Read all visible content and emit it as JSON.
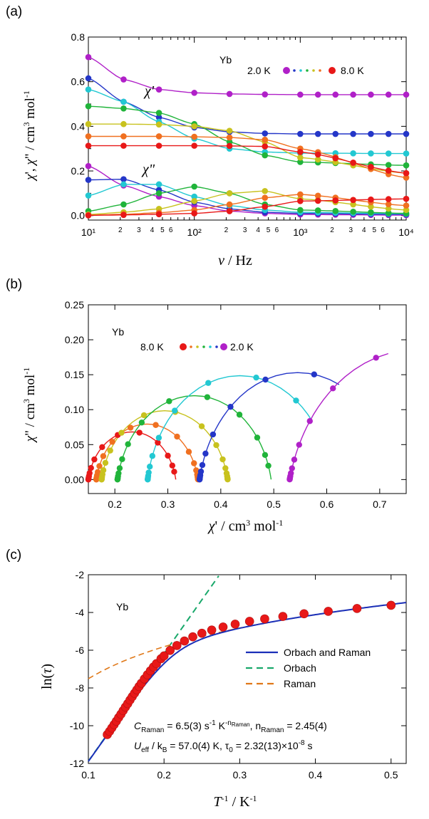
{
  "chart_data": [
    {
      "id": "a",
      "panel_label": "(a)",
      "type": "line",
      "x_scale": "log",
      "xlim": [
        10,
        10000
      ],
      "ylim": [
        -0.02,
        0.8
      ],
      "xlabel": "ν / Hz",
      "ylabel": "χ', χ\" / cm³ mol⁻¹",
      "x_ticks_major": [
        10,
        100,
        1000,
        10000
      ],
      "x_tick_labels": [
        "10¹",
        "10²",
        "10³",
        "10⁴"
      ],
      "x_minor_labels": [
        "2",
        "3",
        "4",
        "5",
        "6"
      ],
      "y_ticks": [
        0.0,
        0.2,
        0.4,
        0.6,
        0.8
      ],
      "y_tick_labels": [
        "0.0",
        "0.2",
        "0.4",
        "0.6",
        "0.8"
      ],
      "annotations": {
        "material": "Yb",
        "chi_prime": "χ'",
        "chi_double_prime": "χ\""
      },
      "legend": {
        "left": "2.0 K",
        "right": "8.0 K",
        "placement": "top-right"
      },
      "colors": [
        "#b020c8",
        "#2436c8",
        "#22c8d2",
        "#20b43a",
        "#c8c21e",
        "#f07020",
        "#e81818"
      ],
      "chi_prime_series": [
        {
          "T": "2.0 K",
          "color": "#b020c8",
          "x": [
            10,
            21.5,
            46.4,
            100,
            215,
            464,
            1000,
            10000
          ],
          "y": [
            0.71,
            0.61,
            0.565,
            0.55,
            0.545,
            0.543,
            0.542,
            0.542
          ]
        },
        {
          "T": "color-2",
          "color": "#2436c8",
          "x": [
            10,
            21.5,
            46.4,
            100,
            215,
            464,
            1000,
            10000
          ],
          "y": [
            0.615,
            0.51,
            0.44,
            0.395,
            0.375,
            0.368,
            0.366,
            0.366
          ]
        },
        {
          "T": "color-3",
          "color": "#22c8d2",
          "x": [
            10,
            21.5,
            46.4,
            100,
            215,
            464,
            1000,
            10000
          ],
          "y": [
            0.565,
            0.51,
            0.42,
            0.345,
            0.3,
            0.285,
            0.28,
            0.278
          ]
        },
        {
          "T": "color-4",
          "color": "#20b43a",
          "x": [
            10,
            21.5,
            46.4,
            100,
            215,
            464,
            1000,
            10000
          ],
          "y": [
            0.49,
            0.48,
            0.46,
            0.41,
            0.33,
            0.27,
            0.24,
            0.225
          ]
        },
        {
          "T": "color-5",
          "color": "#c8c21e",
          "x": [
            10,
            21.5,
            46.4,
            100,
            215,
            464,
            1000,
            10000
          ],
          "y": [
            0.41,
            0.41,
            0.408,
            0.4,
            0.38,
            0.33,
            0.26,
            0.19
          ]
        },
        {
          "T": "color-6",
          "color": "#f07020",
          "x": [
            10,
            21.5,
            46.4,
            100,
            215,
            464,
            1000,
            10000
          ],
          "y": [
            0.355,
            0.355,
            0.355,
            0.353,
            0.35,
            0.34,
            0.3,
            0.17
          ]
        },
        {
          "T": "8.0 K",
          "color": "#e81818",
          "x": [
            10,
            21.5,
            46.4,
            100,
            215,
            464,
            1000,
            10000
          ],
          "y": [
            0.313,
            0.313,
            0.313,
            0.313,
            0.312,
            0.31,
            0.285,
            0.19
          ]
        }
      ],
      "chi_double_prime_series": [
        {
          "T": "2.0 K",
          "color": "#b020c8",
          "x": [
            10,
            21.5,
            46.4,
            100,
            215,
            464,
            1000,
            10000
          ],
          "y": [
            0.222,
            0.135,
            0.085,
            0.045,
            0.02,
            0.01,
            0.005,
            0.002
          ]
        },
        {
          "T": "color-2",
          "color": "#2436c8",
          "x": [
            10,
            21.5,
            46.4,
            100,
            215,
            464,
            1000,
            10000
          ],
          "y": [
            0.16,
            0.163,
            0.115,
            0.06,
            0.03,
            0.015,
            0.01,
            0.005
          ]
        },
        {
          "T": "color-3",
          "color": "#22c8d2",
          "x": [
            10,
            21.5,
            46.4,
            100,
            215,
            464,
            1000,
            10000
          ],
          "y": [
            0.09,
            0.14,
            0.14,
            0.085,
            0.045,
            0.025,
            0.015,
            0.008
          ]
        },
        {
          "T": "color-4",
          "color": "#20b43a",
          "x": [
            10,
            21.5,
            46.4,
            100,
            215,
            464,
            1000,
            10000
          ],
          "y": [
            0.02,
            0.05,
            0.1,
            0.13,
            0.1,
            0.05,
            0.025,
            0.01
          ]
        },
        {
          "T": "color-5",
          "color": "#c8c21e",
          "x": [
            10,
            21.5,
            46.4,
            100,
            215,
            464,
            1000,
            10000
          ],
          "y": [
            0.005,
            0.015,
            0.03,
            0.065,
            0.1,
            0.11,
            0.075,
            0.025
          ]
        },
        {
          "T": "color-6",
          "color": "#f07020",
          "x": [
            10,
            21.5,
            46.4,
            100,
            215,
            464,
            1000,
            10000
          ],
          "y": [
            0.002,
            0.006,
            0.013,
            0.025,
            0.05,
            0.08,
            0.095,
            0.045
          ]
        },
        {
          "T": "8.0 K",
          "color": "#e81818",
          "x": [
            10,
            21.5,
            46.4,
            100,
            215,
            464,
            1000,
            10000
          ],
          "y": [
            0.001,
            0.003,
            0.006,
            0.01,
            0.02,
            0.04,
            0.065,
            0.075
          ]
        }
      ]
    },
    {
      "id": "b",
      "panel_label": "(b)",
      "type": "scatter",
      "xlim": [
        0.15,
        0.75
      ],
      "ylim": [
        -0.02,
        0.25
      ],
      "xlabel": "χ' / cm³ mol⁻¹",
      "ylabel": "χ\" / cm³ mol⁻¹",
      "x_ticks": [
        0.2,
        0.3,
        0.4,
        0.5,
        0.6,
        0.7
      ],
      "x_tick_labels": [
        "0.2",
        "0.3",
        "0.4",
        "0.5",
        "0.6",
        "0.7"
      ],
      "y_ticks": [
        0.0,
        0.05,
        0.1,
        0.15,
        0.2,
        0.25
      ],
      "y_tick_labels": [
        "0.00",
        "0.05",
        "0.10",
        "0.15",
        "0.20",
        "0.25"
      ],
      "annotations": {
        "material": "Yb"
      },
      "legend": {
        "left": "8.0 K",
        "right": "2.0 K",
        "placement": "top-left"
      },
      "colors": [
        "#e81818",
        "#f07020",
        "#c8c21e",
        "#20b43a",
        "#22c8d2",
        "#2436c8",
        "#b020c8"
      ],
      "cole_cole": [
        {
          "T": "8.0 K",
          "color": "#e81818",
          "chi_s": 0.15,
          "chi_t": 0.315,
          "alpha": 0.12
        },
        {
          "T": "color-2",
          "color": "#f07020",
          "chi_s": 0.165,
          "chi_t": 0.357,
          "alpha": 0.12
        },
        {
          "T": "color-3",
          "color": "#c8c21e",
          "chi_s": 0.175,
          "chi_t": 0.413,
          "alpha": 0.12
        },
        {
          "T": "color-4",
          "color": "#20b43a",
          "chi_s": 0.205,
          "chi_t": 0.495,
          "alpha": 0.12
        },
        {
          "T": "color-5",
          "color": "#22c8d2",
          "chi_s": 0.262,
          "chi_t": 0.61,
          "alpha": 0.1
        },
        {
          "T": "color-6",
          "color": "#2436c8",
          "chi_s": 0.36,
          "chi_t": 0.73,
          "alpha": 0.12
        },
        {
          "T": "2.0 K",
          "color": "#b020c8",
          "chi_s": 0.53,
          "chi_t": 1.0,
          "alpha": 0.15
        }
      ]
    },
    {
      "id": "c",
      "panel_label": "(c)",
      "type": "scatter",
      "xlim": [
        0.1,
        0.52
      ],
      "ylim": [
        -12,
        -2
      ],
      "xlabel": "T⁻¹ / K⁻¹",
      "ylabel": "ln(τ)",
      "x_ticks": [
        0.1,
        0.2,
        0.3,
        0.4,
        0.5
      ],
      "x_tick_labels": [
        "0.1",
        "0.2",
        "0.3",
        "0.4",
        "0.5"
      ],
      "y_ticks": [
        -12,
        -10,
        -8,
        -6,
        -4,
        -2
      ],
      "y_tick_labels": [
        "-12",
        "-10",
        "-8",
        "-6",
        "-4",
        "-2"
      ],
      "annotations": {
        "material": "Yb",
        "eq1_prefix": "C",
        "eq1_sub": "Raman",
        "eq1_value": " = 6.5(3) s",
        "eq1_s_exp": "-1",
        "eq1_K": " K",
        "eq1_K_exp": "-n",
        "eq1_K_exp_sub": "Raman",
        "eq1_mid": ", n",
        "eq1_n_sub": "Raman",
        "eq1_n_value": " = 2.45(4)",
        "eq2_U": "U",
        "eq2_U_sub": "eff",
        "eq2_k": " / k",
        "eq2_k_sub": "B",
        "eq2_value": " = 57.0(4) K, τ",
        "eq2_tau_sub": "0",
        "eq2_tau_value": " = 2.32(13)×10",
        "eq2_exp": "-8",
        "eq2_unit": " s"
      },
      "legend": {
        "placement": "right",
        "entries": [
          {
            "label": "Orbach and Raman",
            "color": "#1a2fb8",
            "style": "solid"
          },
          {
            "label": "Orbach",
            "color": "#18a86a",
            "style": "dashed"
          },
          {
            "label": "Raman",
            "color": "#e07818",
            "style": "dashed"
          }
        ]
      },
      "fit": {
        "U_eff_over_kB": 57.0,
        "tau0": 2.32e-08,
        "C_Raman": 6.5,
        "n_Raman": 2.45
      },
      "points_x": [
        0.125,
        0.128,
        0.131,
        0.134,
        0.137,
        0.14,
        0.143,
        0.146,
        0.149,
        0.152,
        0.155,
        0.158,
        0.161,
        0.164,
        0.167,
        0.17,
        0.174,
        0.178,
        0.182,
        0.186,
        0.19,
        0.196,
        0.2,
        0.208,
        0.217,
        0.227,
        0.238,
        0.25,
        0.263,
        0.278,
        0.294,
        0.313,
        0.333,
        0.357,
        0.385,
        0.417,
        0.455,
        0.5
      ],
      "points_y": [
        -10.47,
        -10.3,
        -10.12,
        -9.94,
        -9.76,
        -9.57,
        -9.39,
        -9.2,
        -9.01,
        -8.83,
        -8.64,
        -8.46,
        -8.28,
        -8.1,
        -7.92,
        -7.75,
        -7.52,
        -7.3,
        -7.09,
        -6.89,
        -6.71,
        -6.45,
        -6.3,
        -6.01,
        -5.75,
        -5.51,
        -5.29,
        -5.1,
        -4.93,
        -4.77,
        -4.62,
        -4.47,
        -4.34,
        -4.21,
        -4.07,
        -3.94,
        -3.79,
        -3.62
      ]
    }
  ]
}
